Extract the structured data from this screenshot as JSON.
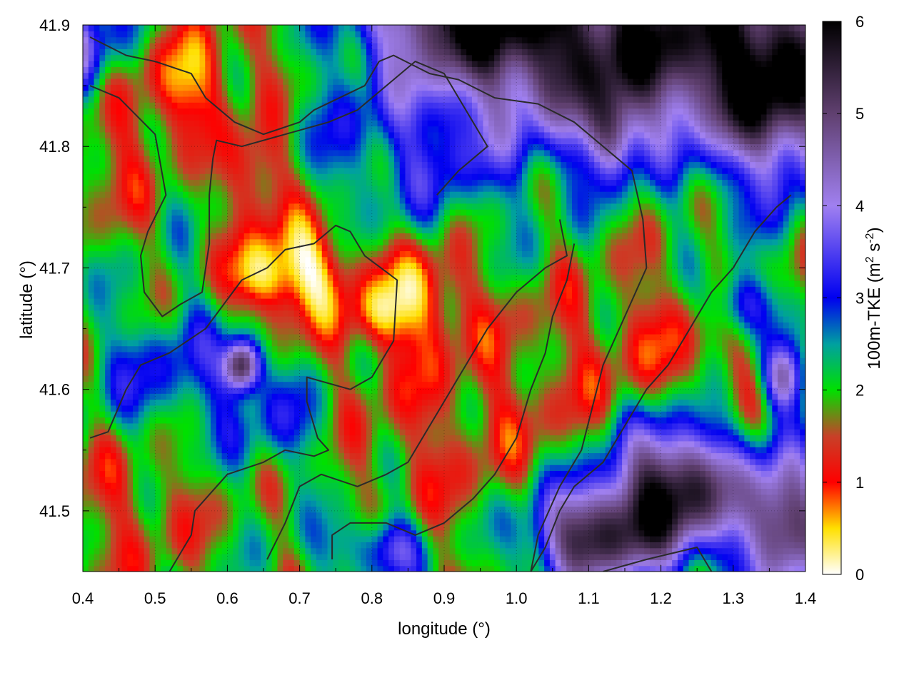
{
  "chart_data": {
    "type": "heatmap",
    "xlabel": "longitude (°)",
    "ylabel": "latitude (°)",
    "colorbar_label_main": "100m-TKE (m",
    "colorbar_sup1": "2",
    "colorbar_mid": " s",
    "colorbar_sup2": "-2",
    "colorbar_close": ")",
    "xlim": [
      0.4,
      1.4
    ],
    "ylim": [
      41.45,
      41.9
    ],
    "clim": [
      0,
      6
    ],
    "x_ticks": [
      0.4,
      0.5,
      0.6,
      0.7,
      0.8,
      0.9,
      1.0,
      1.1,
      1.2,
      1.3,
      1.4
    ],
    "x_tick_labels": [
      "0.4",
      "0.5",
      "0.6",
      "0.7",
      "0.8",
      "0.9",
      "1.0",
      "1.1",
      "1.2",
      "1.3",
      "1.4"
    ],
    "y_ticks": [
      41.5,
      41.6,
      41.7,
      41.8,
      41.9
    ],
    "y_tick_labels": [
      "41.5",
      "41.6",
      "41.7",
      "41.8",
      "41.9"
    ],
    "c_ticks": [
      0,
      1,
      2,
      3,
      4,
      5,
      6
    ],
    "c_tick_labels": [
      "0",
      "1",
      "2",
      "3",
      "4",
      "5",
      "6"
    ],
    "grid": true,
    "colormap": [
      {
        "v": 0.0,
        "color": "#ffffff"
      },
      {
        "v": 0.5,
        "color": "#ffe000"
      },
      {
        "v": 1.0,
        "color": "#ff0000"
      },
      {
        "v": 1.5,
        "color": "#c84028"
      },
      {
        "v": 2.0,
        "color": "#00e000"
      },
      {
        "v": 2.5,
        "color": "#00a0a0"
      },
      {
        "v": 3.0,
        "color": "#0000f0"
      },
      {
        "v": 4.0,
        "color": "#a080f0"
      },
      {
        "v": 5.0,
        "color": "#604070"
      },
      {
        "v": 6.0,
        "color": "#000000"
      }
    ],
    "field_blobs": [
      {
        "x": 0.7,
        "y": 41.7,
        "sx": 0.05,
        "sy": 0.03,
        "amp": -1.8
      },
      {
        "x": 0.64,
        "y": 41.69,
        "sx": 0.03,
        "sy": 0.02,
        "amp": -0.9
      },
      {
        "x": 0.87,
        "y": 41.68,
        "sx": 0.04,
        "sy": 0.03,
        "amp": -1.2
      },
      {
        "x": 0.81,
        "y": 41.66,
        "sx": 0.03,
        "sy": 0.02,
        "amp": -1.0
      },
      {
        "x": 0.64,
        "y": 41.78,
        "sx": 0.03,
        "sy": 0.03,
        "amp": -1.3
      },
      {
        "x": 0.54,
        "y": 41.85,
        "sx": 0.04,
        "sy": 0.03,
        "amp": -1.4
      },
      {
        "x": 0.44,
        "y": 41.8,
        "sx": 0.05,
        "sy": 0.05,
        "amp": -0.6
      },
      {
        "x": 0.92,
        "y": 41.58,
        "sx": 0.15,
        "sy": 0.08,
        "amp": -0.6
      },
      {
        "x": 1.22,
        "y": 41.63,
        "sx": 0.1,
        "sy": 0.05,
        "amp": -0.7
      },
      {
        "x": 0.47,
        "y": 41.51,
        "sx": 0.07,
        "sy": 0.05,
        "amp": -0.6
      },
      {
        "x": 0.88,
        "y": 41.8,
        "sx": 0.12,
        "sy": 0.05,
        "amp": 1.0
      },
      {
        "x": 1.1,
        "y": 41.86,
        "sx": 0.15,
        "sy": 0.04,
        "amp": 1.4
      },
      {
        "x": 0.52,
        "y": 41.61,
        "sx": 0.08,
        "sy": 0.04,
        "amp": 1.0
      },
      {
        "x": 0.68,
        "y": 41.57,
        "sx": 0.05,
        "sy": 0.03,
        "amp": 0.9
      },
      {
        "x": 0.78,
        "y": 41.47,
        "sx": 0.05,
        "sy": 0.02,
        "amp": 0.9
      },
      {
        "x": 0.62,
        "y": 41.62,
        "sx": 0.018,
        "sy": 0.015,
        "amp": 3.5
      },
      {
        "x": 0.64,
        "y": 41.88,
        "sx": 0.05,
        "sy": 0.03,
        "amp": -0.5
      },
      {
        "x": 0.36,
        "y": 41.88,
        "sx": 0.06,
        "sy": 0.03,
        "amp": 2.5
      },
      {
        "x": 0.93,
        "y": 41.92,
        "sx": 0.1,
        "sy": 0.04,
        "amp": 3.5
      },
      {
        "x": 1.25,
        "y": 41.9,
        "sx": 0.18,
        "sy": 0.06,
        "amp": 3.0
      },
      {
        "x": 1.36,
        "y": 41.83,
        "sx": 0.06,
        "sy": 0.05,
        "amp": 2.5
      },
      {
        "x": 1.13,
        "y": 41.81,
        "sx": 0.025,
        "sy": 0.025,
        "amp": 2.0
      },
      {
        "x": 1.22,
        "y": 41.52,
        "sx": 0.06,
        "sy": 0.04,
        "amp": 4.0
      },
      {
        "x": 1.1,
        "y": 41.48,
        "sx": 0.06,
        "sy": 0.03,
        "amp": 3.5
      },
      {
        "x": 1.37,
        "y": 41.49,
        "sx": 0.04,
        "sy": 0.04,
        "amp": 3.5
      },
      {
        "x": 1.31,
        "y": 41.67,
        "sx": 0.03,
        "sy": 0.02,
        "amp": 1.8
      },
      {
        "x": 1.37,
        "y": 41.61,
        "sx": 0.02,
        "sy": 0.02,
        "amp": 2.6
      },
      {
        "x": 0.83,
        "y": 41.47,
        "sx": 0.025,
        "sy": 0.02,
        "amp": 1.2
      }
    ],
    "contours": [
      [
        [
          0.41,
          41.85
        ],
        [
          0.45,
          41.84
        ],
        [
          0.5,
          41.81
        ],
        [
          0.515,
          41.76
        ],
        [
          0.49,
          41.73
        ],
        [
          0.48,
          41.71
        ],
        [
          0.485,
          41.68
        ],
        [
          0.51,
          41.66
        ],
        [
          0.535,
          41.67
        ],
        [
          0.565,
          41.68
        ],
        [
          0.575,
          41.72
        ],
        [
          0.575,
          41.76
        ],
        [
          0.58,
          41.79
        ],
        [
          0.585,
          41.805
        ],
        [
          0.62,
          41.8
        ],
        [
          0.68,
          41.81
        ],
        [
          0.74,
          41.82
        ],
        [
          0.78,
          41.83
        ],
        [
          0.83,
          41.855
        ],
        [
          0.86,
          41.87
        ],
        [
          0.9,
          41.86
        ],
        [
          0.93,
          41.83
        ],
        [
          0.96,
          41.8
        ],
        [
          0.92,
          41.78
        ],
        [
          0.89,
          41.76
        ]
      ],
      [
        [
          0.41,
          41.56
        ],
        [
          0.435,
          41.565
        ],
        [
          0.46,
          41.6
        ],
        [
          0.48,
          41.62
        ],
        [
          0.52,
          41.63
        ],
        [
          0.57,
          41.65
        ],
        [
          0.62,
          41.69
        ],
        [
          0.655,
          41.7
        ],
        [
          0.68,
          41.715
        ],
        [
          0.72,
          41.72
        ],
        [
          0.75,
          41.735
        ],
        [
          0.77,
          41.73
        ],
        [
          0.79,
          41.71
        ],
        [
          0.835,
          41.69
        ],
        [
          0.83,
          41.64
        ],
        [
          0.8,
          41.61
        ],
        [
          0.77,
          41.6
        ],
        [
          0.71,
          41.61
        ],
        [
          0.71,
          41.59
        ],
        [
          0.725,
          41.56
        ],
        [
          0.74,
          41.55
        ],
        [
          0.72,
          41.545
        ],
        [
          0.68,
          41.55
        ],
        [
          0.65,
          41.54
        ],
        [
          0.6,
          41.53
        ],
        [
          0.555,
          41.5
        ],
        [
          0.55,
          41.48
        ],
        [
          0.52,
          41.45
        ]
      ],
      [
        [
          0.41,
          41.89
        ],
        [
          0.46,
          41.875
        ],
        [
          0.5,
          41.87
        ],
        [
          0.55,
          41.86
        ],
        [
          0.57,
          41.84
        ],
        [
          0.59,
          41.83
        ],
        [
          0.61,
          41.82
        ],
        [
          0.65,
          41.81
        ],
        [
          0.7,
          41.82
        ],
        [
          0.72,
          41.83
        ],
        [
          0.79,
          41.85
        ],
        [
          0.8,
          41.86
        ],
        [
          0.81,
          41.87
        ],
        [
          0.83,
          41.875
        ],
        [
          0.88,
          41.86
        ],
        [
          0.92,
          41.855
        ],
        [
          0.97,
          41.84
        ],
        [
          1.03,
          41.835
        ],
        [
          1.08,
          41.82
        ],
        [
          1.12,
          41.8
        ],
        [
          1.16,
          41.78
        ],
        [
          1.175,
          41.74
        ],
        [
          1.18,
          41.7
        ],
        [
          1.15,
          41.66
        ],
        [
          1.12,
          41.62
        ],
        [
          1.09,
          41.55
        ],
        [
          1.06,
          41.52
        ],
        [
          1.03,
          41.48
        ],
        [
          1.02,
          41.45
        ]
      ],
      [
        [
          0.655,
          41.46
        ],
        [
          0.68,
          41.49
        ],
        [
          0.7,
          41.52
        ],
        [
          0.73,
          41.53
        ],
        [
          0.78,
          41.52
        ],
        [
          0.82,
          41.53
        ],
        [
          0.85,
          41.54
        ],
        [
          0.87,
          41.56
        ],
        [
          0.9,
          41.59
        ],
        [
          0.93,
          41.62
        ],
        [
          0.96,
          41.65
        ],
        [
          1.0,
          41.68
        ],
        [
          1.04,
          41.7
        ],
        [
          1.07,
          41.71
        ],
        [
          1.06,
          41.74
        ]
      ],
      [
        [
          0.745,
          41.46
        ],
        [
          0.745,
          41.48
        ],
        [
          0.77,
          41.49
        ],
        [
          0.82,
          41.49
        ],
        [
          0.86,
          41.48
        ],
        [
          0.9,
          41.49
        ],
        [
          0.94,
          41.51
        ],
        [
          0.97,
          41.53
        ],
        [
          1.0,
          41.56
        ],
        [
          1.02,
          41.6
        ],
        [
          1.04,
          41.63
        ],
        [
          1.05,
          41.66
        ],
        [
          1.07,
          41.69
        ],
        [
          1.08,
          41.72
        ]
      ],
      [
        [
          1.02,
          41.45
        ],
        [
          1.04,
          41.47
        ],
        [
          1.06,
          41.5
        ],
        [
          1.08,
          41.52
        ],
        [
          1.12,
          41.54
        ],
        [
          1.15,
          41.57
        ],
        [
          1.18,
          41.6
        ],
        [
          1.21,
          41.62
        ],
        [
          1.24,
          41.65
        ],
        [
          1.27,
          41.68
        ],
        [
          1.3,
          41.7
        ],
        [
          1.33,
          41.73
        ],
        [
          1.36,
          41.75
        ],
        [
          1.38,
          41.76
        ]
      ],
      [
        [
          1.12,
          41.45
        ],
        [
          1.18,
          41.46
        ],
        [
          1.25,
          41.47
        ],
        [
          1.27,
          41.45
        ]
      ]
    ]
  }
}
